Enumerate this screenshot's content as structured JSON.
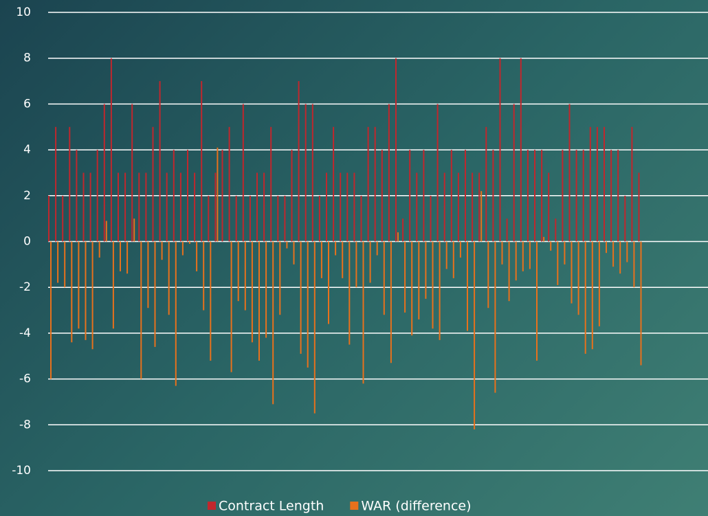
{
  "chart_data": {
    "type": "bar",
    "categories": [
      null,
      null,
      null,
      null,
      null,
      null,
      null,
      null,
      null,
      null,
      null,
      null,
      null,
      null,
      null,
      null,
      null,
      null,
      null,
      null,
      null,
      null,
      null,
      null,
      null,
      null,
      null,
      null,
      null,
      null,
      null,
      null,
      null,
      null,
      null,
      null,
      null,
      null,
      null,
      null,
      null,
      null,
      null,
      null,
      null,
      null,
      null,
      null,
      null,
      null,
      null,
      null,
      null,
      null,
      null,
      null,
      null,
      null,
      null,
      null,
      null,
      null,
      null,
      null,
      null,
      null,
      null,
      null,
      null,
      null,
      null,
      null,
      null,
      null,
      null,
      null,
      null,
      null,
      null,
      null,
      null,
      null,
      null,
      null,
      null,
      null
    ],
    "series": [
      {
        "name": "Contract Length",
        "color": "#c0272d",
        "values": [
          2,
          5,
          2,
          5,
          4,
          3,
          3,
          4,
          6,
          8,
          3,
          3,
          6,
          3,
          3,
          5,
          7,
          3,
          4,
          3,
          4,
          3,
          7,
          2,
          3,
          4,
          5,
          2,
          6,
          2,
          3,
          3,
          5,
          2,
          2,
          4,
          7,
          6,
          6,
          2,
          3,
          5,
          3,
          3,
          3,
          2,
          5,
          5,
          4,
          6,
          8,
          1,
          4,
          3,
          4,
          2,
          6,
          3,
          4,
          3,
          4,
          3,
          3,
          5,
          4,
          8,
          1,
          6,
          8,
          4,
          4,
          4,
          3,
          1,
          4,
          6,
          4,
          4,
          5,
          5,
          5,
          4,
          4,
          2,
          5,
          3
        ]
      },
      {
        "name": "WAR (difference)",
        "color": "#e8711c",
        "values": [
          -6,
          -1.8,
          -2,
          -4.4,
          -3.8,
          -4.3,
          -4.7,
          -0.7,
          0.9,
          -3.8,
          -1.3,
          -1.4,
          1,
          -6,
          -2.9,
          -4.6,
          -0.8,
          -3.2,
          -6.3,
          -0.6,
          -0.1,
          -1.3,
          -3,
          -5.2,
          4.1,
          0,
          -5.7,
          -2.6,
          -3,
          -4.4,
          -5.2,
          -4.2,
          -7.1,
          -3.2,
          -0.3,
          -1,
          -4.9,
          -5.5,
          -7.5,
          -1.6,
          -3.6,
          -0.6,
          -1.6,
          -4.5,
          -2,
          -6.2,
          -1.8,
          -0.6,
          -3.2,
          -5.3,
          0.4,
          -3.1,
          -4.1,
          -3.4,
          -2.5,
          -3.8,
          -4.3,
          -1.2,
          -1.6,
          -0.7,
          -3.9,
          -8.2,
          2.2,
          -2.9,
          -6.6,
          -1,
          -2.6,
          -1.7,
          -1.3,
          -1.2,
          -5.2,
          0.2,
          -0.4,
          -1.9,
          -1,
          -2.7,
          -3.2,
          -4.9,
          -4.7,
          -3.7,
          -0.5,
          -1.1,
          -1.4,
          -0.9,
          -2,
          -5.4
        ]
      }
    ],
    "ylim": [
      -10,
      10
    ],
    "yticks": [
      -10,
      -8,
      -6,
      -4,
      -2,
      0,
      2,
      4,
      6,
      8,
      10
    ],
    "grid": true,
    "legend": "bottom"
  }
}
